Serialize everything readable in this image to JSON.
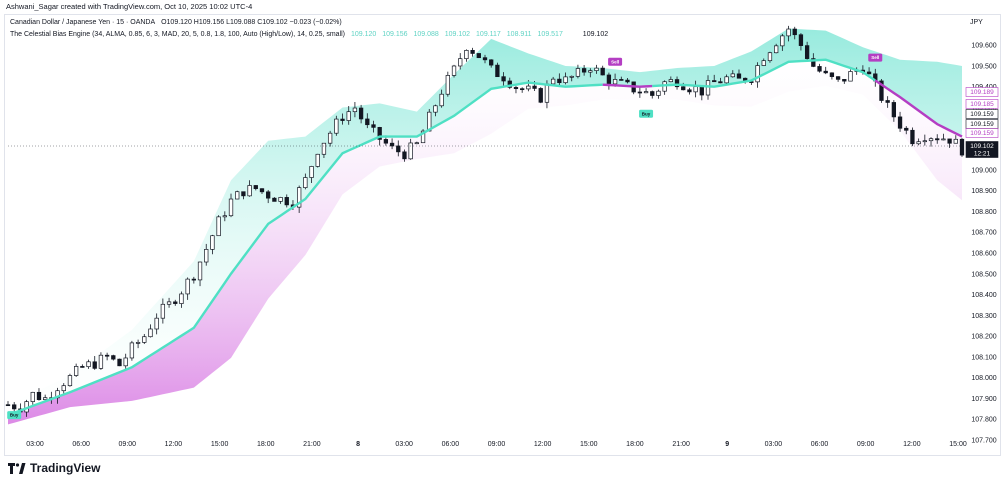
{
  "header": {
    "creator_line": "Ashwani_Sagar created with TradingView.com, Oct 10, 2025 10:02 UTC-4",
    "symbol": "Canadian Dollar / Japanese Yen · 15 · OANDA",
    "ohlc": "O109.120  H109.156  L109.088  C109.102  −0.023 (−0.02%)",
    "indicator": "The Celestial Bias Engine (34, ALMA, 0.85, 6, 3, MAD, 20, 5, 0.8, 1.8, 100, Auto (High/Low), 14, 0.25, small)",
    "indicator_values": [
      "109.120",
      "109.156",
      "109.088",
      "109.102",
      "109.117",
      "108.911",
      "109.517"
    ],
    "last_value": "109.102",
    "currency": "JPY"
  },
  "branding": {
    "logo_text": "TradingView"
  },
  "colors": {
    "up": "#089981",
    "down": "#f23645",
    "candle": "#131722",
    "teal": "#4fe0c4",
    "magenta": "#b43ec3",
    "upper_cloud": "#8fe9dc",
    "lower_cloud": "#da7fe3"
  },
  "chart_data": {
    "type": "candlestick",
    "symbol": "CADJPY",
    "timeframe": "15",
    "ylim": [
      107.7,
      109.75
    ],
    "y_ticks": [
      "109.600",
      "109.500",
      "109.400",
      "109.300",
      "109.200",
      "109.100",
      "109.000",
      "108.900",
      "108.800",
      "108.700",
      "108.600",
      "108.500",
      "108.400",
      "108.300",
      "108.200",
      "108.100",
      "108.000",
      "107.900",
      "107.800",
      "107.700"
    ],
    "x_ticks": [
      "03:00",
      "06:00",
      "09:00",
      "12:00",
      "15:00",
      "18:00",
      "21:00",
      "8",
      "03:00",
      "06:00",
      "09:00",
      "12:00",
      "15:00",
      "18:00",
      "21:00",
      "9",
      "03:00",
      "06:00",
      "09:00",
      "12:00",
      "15:00"
    ],
    "price_path": [
      [
        0,
        107.87
      ],
      [
        2,
        107.86
      ],
      [
        4,
        107.92
      ],
      [
        6,
        107.9
      ],
      [
        8,
        107.96
      ],
      [
        10,
        108.0
      ],
      [
        12,
        108.05
      ],
      [
        14,
        108.07
      ],
      [
        16,
        108.1
      ],
      [
        18,
        108.06
      ],
      [
        20,
        108.14
      ],
      [
        22,
        108.2
      ],
      [
        24,
        108.3
      ],
      [
        26,
        108.35
      ],
      [
        28,
        108.42
      ],
      [
        30,
        108.5
      ],
      [
        32,
        108.62
      ],
      [
        34,
        108.75
      ],
      [
        36,
        108.85
      ],
      [
        38,
        108.9
      ],
      [
        40,
        108.91
      ],
      [
        42,
        108.88
      ],
      [
        44,
        108.86
      ],
      [
        46,
        108.85
      ],
      [
        48,
        108.95
      ],
      [
        50,
        109.1
      ],
      [
        52,
        109.18
      ],
      [
        54,
        109.26
      ],
      [
        56,
        109.3
      ],
      [
        58,
        109.2
      ],
      [
        60,
        109.15
      ],
      [
        62,
        109.1
      ],
      [
        64,
        109.08
      ],
      [
        66,
        109.12
      ],
      [
        68,
        109.25
      ],
      [
        70,
        109.38
      ],
      [
        72,
        109.48
      ],
      [
        74,
        109.6
      ],
      [
        76,
        109.55
      ],
      [
        78,
        109.48
      ],
      [
        80,
        109.45
      ],
      [
        82,
        109.4
      ],
      [
        84,
        109.38
      ],
      [
        86,
        109.35
      ],
      [
        88,
        109.45
      ],
      [
        90,
        109.43
      ],
      [
        92,
        109.46
      ],
      [
        94,
        109.5
      ],
      [
        96,
        109.45
      ],
      [
        98,
        109.42
      ],
      [
        100,
        109.4
      ],
      [
        102,
        109.38
      ],
      [
        104,
        109.36
      ],
      [
        106,
        109.42
      ],
      [
        108,
        109.43
      ],
      [
        110,
        109.4
      ],
      [
        112,
        109.38
      ],
      [
        114,
        109.42
      ],
      [
        116,
        109.44
      ],
      [
        118,
        109.43
      ],
      [
        120,
        109.45
      ],
      [
        122,
        109.55
      ],
      [
        124,
        109.62
      ],
      [
        126,
        109.68
      ],
      [
        128,
        109.6
      ],
      [
        130,
        109.5
      ],
      [
        132,
        109.45
      ],
      [
        134,
        109.42
      ],
      [
        136,
        109.46
      ],
      [
        138,
        109.5
      ],
      [
        140,
        109.4
      ],
      [
        142,
        109.3
      ],
      [
        144,
        109.22
      ],
      [
        146,
        109.15
      ],
      [
        148,
        109.17
      ],
      [
        150,
        109.16
      ],
      [
        152,
        109.15
      ],
      [
        154,
        109.1
      ]
    ],
    "baseline_path": [
      [
        0,
        107.82
      ],
      [
        10,
        107.93
      ],
      [
        20,
        108.05
      ],
      [
        30,
        108.24
      ],
      [
        36,
        108.5
      ],
      [
        42,
        108.74
      ],
      [
        48,
        108.86
      ],
      [
        54,
        109.08
      ],
      [
        60,
        109.16
      ],
      [
        66,
        109.16
      ],
      [
        72,
        109.26
      ],
      [
        78,
        109.39
      ],
      [
        84,
        109.42
      ],
      [
        90,
        109.4
      ],
      [
        96,
        109.41
      ],
      [
        102,
        109.4
      ],
      [
        108,
        109.41
      ],
      [
        114,
        109.4
      ],
      [
        120,
        109.43
      ],
      [
        126,
        109.52
      ],
      [
        132,
        109.53
      ],
      [
        138,
        109.47
      ],
      [
        144,
        109.35
      ],
      [
        150,
        109.22
      ],
      [
        154,
        109.16
      ]
    ],
    "band_width": [
      [
        0,
        0.05
      ],
      [
        10,
        0.08
      ],
      [
        20,
        0.18
      ],
      [
        30,
        0.32
      ],
      [
        36,
        0.45
      ],
      [
        42,
        0.4
      ],
      [
        48,
        0.3
      ],
      [
        54,
        0.22
      ],
      [
        60,
        0.16
      ],
      [
        66,
        0.12
      ],
      [
        72,
        0.2
      ],
      [
        78,
        0.24
      ],
      [
        84,
        0.14
      ],
      [
        90,
        0.1
      ],
      [
        96,
        0.08
      ],
      [
        102,
        0.07
      ],
      [
        108,
        0.08
      ],
      [
        114,
        0.1
      ],
      [
        120,
        0.14
      ],
      [
        126,
        0.16
      ],
      [
        132,
        0.14
      ],
      [
        138,
        0.12
      ],
      [
        144,
        0.18
      ],
      [
        150,
        0.3
      ],
      [
        154,
        0.34
      ]
    ],
    "signals": [
      {
        "type": "Buy",
        "x": 1,
        "y": 107.82
      },
      {
        "type": "Buy",
        "x": 103,
        "y": 109.27
      },
      {
        "type": "Sell",
        "x": 98,
        "y": 109.52
      },
      {
        "type": "Sell",
        "x": 140,
        "y": 109.54
      }
    ],
    "price_labels": [
      {
        "value": "109.189",
        "style": "magenta"
      },
      {
        "value": "109.185",
        "style": "magenta"
      },
      {
        "value": "109.159",
        "style": "plain"
      },
      {
        "value": "109.159",
        "style": "plain"
      },
      {
        "value": "109.159",
        "style": "magenta"
      },
      {
        "value": "109.102",
        "style": "current"
      }
    ],
    "countdown": "12:21",
    "grid": false
  }
}
